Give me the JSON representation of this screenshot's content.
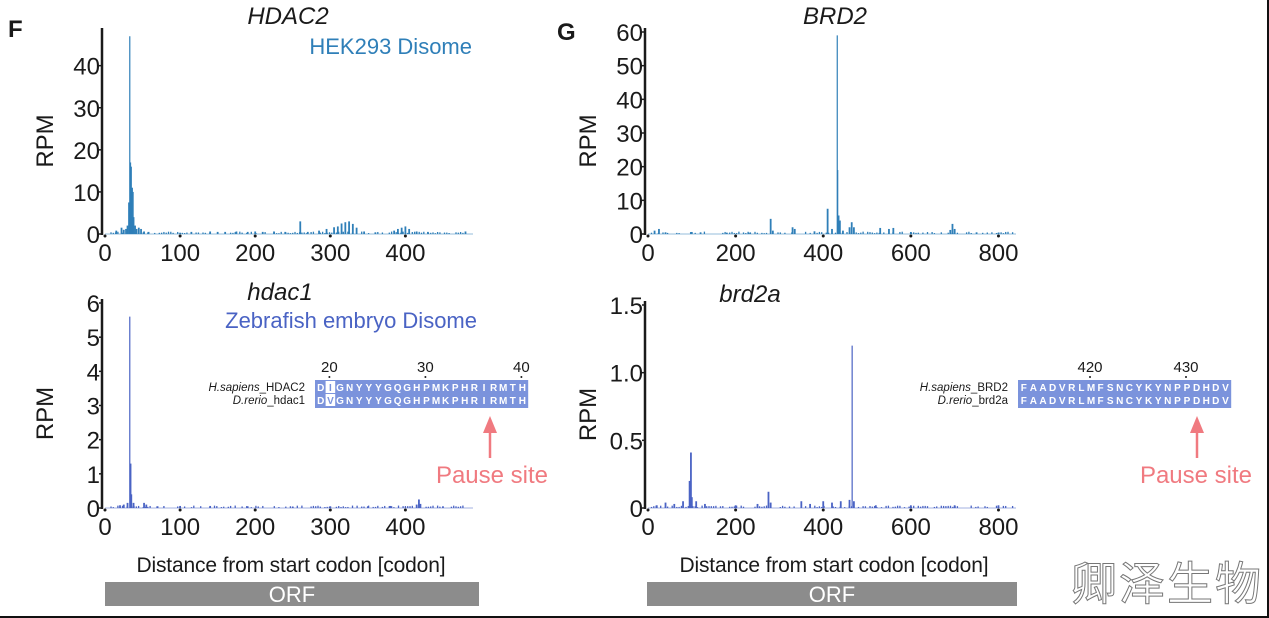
{
  "panels": {
    "F": {
      "letter": "F"
    },
    "G": {
      "letter": "G"
    }
  },
  "xlabel": "Distance from start codon [codon]",
  "orf_label": "ORF",
  "pause_label": "Pause site",
  "watermark": "卿泽生物",
  "colors": {
    "human": "#2f7fb8",
    "zebrafish": "#4a63c4",
    "pause": "#f07a80",
    "align_bg": "#7b93dc",
    "orf": "#8c8c8c"
  },
  "chart_data": [
    {
      "id": "F-top",
      "type": "bar",
      "title": "HDAC2",
      "subtitle": "HEK293 Disome",
      "xlabel": "",
      "ylabel": "RPM",
      "xlim": [
        0,
        490
      ],
      "ylim": [
        0,
        48
      ],
      "xticks": [
        0,
        100,
        200,
        300,
        400
      ],
      "yticks": [
        0,
        10,
        20,
        30,
        40
      ],
      "peaks": [
        [
          15,
          0.8
        ],
        [
          22,
          1.5
        ],
        [
          25,
          1.0
        ],
        [
          28,
          1.2
        ],
        [
          30,
          2.0
        ],
        [
          32,
          7.5
        ],
        [
          33,
          47
        ],
        [
          34,
          17
        ],
        [
          35,
          16
        ],
        [
          36,
          11
        ],
        [
          37,
          10
        ],
        [
          38,
          4
        ],
        [
          40,
          2
        ],
        [
          42,
          1.2
        ],
        [
          45,
          1.5
        ],
        [
          48,
          1.2
        ],
        [
          52,
          0.6
        ],
        [
          58,
          0.5
        ],
        [
          100,
          0.3
        ],
        [
          115,
          0.5
        ],
        [
          140,
          0.6
        ],
        [
          150,
          0.5
        ],
        [
          160,
          0.5
        ],
        [
          175,
          0.6
        ],
        [
          190,
          0.5
        ],
        [
          200,
          0.6
        ],
        [
          210,
          0.5
        ],
        [
          225,
          0.6
        ],
        [
          240,
          0.5
        ],
        [
          260,
          3.0
        ],
        [
          270,
          0.5
        ],
        [
          285,
          0.8
        ],
        [
          295,
          1.2
        ],
        [
          305,
          1.6
        ],
        [
          310,
          1.8
        ],
        [
          315,
          2.5
        ],
        [
          320,
          2.8
        ],
        [
          325,
          3.0
        ],
        [
          330,
          2.4
        ],
        [
          335,
          1.5
        ],
        [
          345,
          0.6
        ],
        [
          360,
          0.4
        ],
        [
          385,
          0.8
        ],
        [
          390,
          1.2
        ],
        [
          395,
          1.5
        ],
        [
          400,
          1.8
        ],
        [
          405,
          1.2
        ],
        [
          415,
          0.6
        ],
        [
          430,
          0.5
        ],
        [
          480,
          0.6
        ]
      ],
      "color": "#2f7fb8"
    },
    {
      "id": "F-bottom",
      "type": "bar",
      "title": "hdac1",
      "subtitle": "Zebrafish embryo Disome",
      "xlabel": "Distance from start codon [codon]",
      "ylabel": "RPM",
      "xlim": [
        0,
        490
      ],
      "ylim": [
        0,
        6
      ],
      "xticks": [
        0,
        100,
        200,
        300,
        400
      ],
      "yticks": [
        0,
        1,
        2,
        3,
        4,
        5,
        6
      ],
      "peaks": [
        [
          20,
          0.08
        ],
        [
          25,
          0.1
        ],
        [
          30,
          0.15
        ],
        [
          33,
          5.6
        ],
        [
          34,
          1.3
        ],
        [
          35,
          0.4
        ],
        [
          38,
          0.15
        ],
        [
          52,
          0.15
        ],
        [
          55,
          0.1
        ],
        [
          70,
          0.05
        ],
        [
          100,
          0.06
        ],
        [
          140,
          0.06
        ],
        [
          190,
          0.05
        ],
        [
          250,
          0.04
        ],
        [
          300,
          0.05
        ],
        [
          350,
          0.05
        ],
        [
          380,
          0.06
        ],
        [
          415,
          0.1
        ],
        [
          418,
          0.25
        ],
        [
          420,
          0.12
        ],
        [
          450,
          0.05
        ]
      ],
      "color": "#4a63c4",
      "alignment": {
        "positions": [
          20,
          30,
          40
        ],
        "rows": [
          {
            "species": "H.sapiens",
            "gene": "_HDAC2",
            "seq": "DIGNYYYGQGHPMKPHRIRMTH"
          },
          {
            "species": "D.rerio",
            "gene": "_hdac1",
            "seq": "DVGNYYYGQGHPMKPHRIRMTH"
          }
        ],
        "mismatch_index": 1,
        "pause_index": 18
      }
    },
    {
      "id": "G-top",
      "type": "bar",
      "title": "BRD2",
      "subtitle": "",
      "xlabel": "",
      "ylabel": "RPM",
      "xlim": [
        0,
        840
      ],
      "ylim": [
        0,
        60
      ],
      "xticks": [
        0,
        200,
        400,
        600,
        800
      ],
      "yticks": [
        0,
        10,
        20,
        30,
        40,
        50,
        60
      ],
      "peaks": [
        [
          15,
          1.0
        ],
        [
          25,
          1.5
        ],
        [
          40,
          0.5
        ],
        [
          100,
          0.6
        ],
        [
          120,
          0.5
        ],
        [
          180,
          0.4
        ],
        [
          230,
          0.4
        ],
        [
          280,
          4.5
        ],
        [
          285,
          1.0
        ],
        [
          330,
          2.0
        ],
        [
          335,
          1.5
        ],
        [
          380,
          0.8
        ],
        [
          410,
          7.5
        ],
        [
          420,
          1.5
        ],
        [
          432,
          59
        ],
        [
          433,
          19
        ],
        [
          435,
          5.5
        ],
        [
          438,
          4
        ],
        [
          445,
          1.0
        ],
        [
          460,
          2
        ],
        [
          465,
          3.5
        ],
        [
          470,
          2
        ],
        [
          530,
          1.8
        ],
        [
          550,
          1.5
        ],
        [
          560,
          1.8
        ],
        [
          600,
          0.6
        ],
        [
          690,
          1.2
        ],
        [
          695,
          3.0
        ],
        [
          700,
          1.5
        ],
        [
          750,
          0.5
        ],
        [
          800,
          0.4
        ]
      ],
      "color": "#2f7fb8"
    },
    {
      "id": "G-bottom",
      "type": "bar",
      "title": "brd2a",
      "subtitle": "",
      "xlabel": "Distance from start codon [codon]",
      "ylabel": "RPM",
      "xlim": [
        0,
        840
      ],
      "ylim": [
        0,
        1.5
      ],
      "xticks": [
        0,
        200,
        400,
        600,
        800
      ],
      "yticks": [
        0,
        0.5,
        1.0,
        1.5
      ],
      "ytick_labels": [
        "0",
        "0.5",
        "1.0",
        "1.5"
      ],
      "peaks": [
        [
          20,
          0.02
        ],
        [
          40,
          0.04
        ],
        [
          60,
          0.03
        ],
        [
          80,
          0.05
        ],
        [
          95,
          0.2
        ],
        [
          98,
          0.41
        ],
        [
          100,
          0.08
        ],
        [
          110,
          0.05
        ],
        [
          130,
          0.03
        ],
        [
          200,
          0.02
        ],
        [
          250,
          0.03
        ],
        [
          275,
          0.12
        ],
        [
          280,
          0.04
        ],
        [
          350,
          0.05
        ],
        [
          370,
          0.03
        ],
        [
          400,
          0.05
        ],
        [
          420,
          0.04
        ],
        [
          440,
          0.05
        ],
        [
          460,
          0.06
        ],
        [
          466,
          1.2
        ],
        [
          470,
          0.05
        ],
        [
          520,
          0.02
        ],
        [
          600,
          0.02
        ],
        [
          700,
          0.02
        ],
        [
          800,
          0.02
        ]
      ],
      "color": "#4a63c4",
      "alignment": {
        "positions": [
          420,
          430
        ],
        "rows": [
          {
            "species": "H.sapiens",
            "gene": "_BRD2",
            "seq": "FAADVRLMFSNCYKYNPPDHDV"
          },
          {
            "species": "D.rerio",
            "gene": "_brd2a",
            "seq": "FAADVRLMFSNCYKYNPPDHDV"
          }
        ],
        "mismatch_index": -1,
        "pause_index": 18
      }
    }
  ]
}
